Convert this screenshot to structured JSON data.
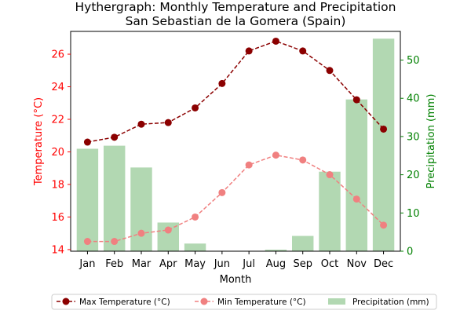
{
  "chart_data": {
    "type": "bar+line",
    "title": "Hythergraph: Monthly Temperature and Precipitation",
    "subtitle": "San Sebastian de la Gomera (Spain)",
    "xlabel": "Month",
    "ylabel_left": "Temperature (°C)",
    "ylabel_right": "Precipitation (mm)",
    "categories": [
      "Jan",
      "Feb",
      "Mar",
      "Apr",
      "May",
      "Jun",
      "Jul",
      "Aug",
      "Sep",
      "Oct",
      "Nov",
      "Dec"
    ],
    "ylim_left": [
      13.9,
      27.4
    ],
    "yticks_left": [
      "14",
      "16",
      "18",
      "20",
      "22",
      "24",
      "26"
    ],
    "ylim_right": [
      0,
      57.5
    ],
    "yticks_right": [
      "0",
      "10",
      "20",
      "30",
      "40",
      "50"
    ],
    "series": [
      {
        "name": "Max Temperature (°C)",
        "kind": "line",
        "axis": "left",
        "color": "#8b0000",
        "values": [
          20.6,
          20.9,
          21.7,
          21.8,
          22.7,
          24.2,
          26.2,
          26.8,
          26.2,
          25.0,
          23.2,
          21.4
        ]
      },
      {
        "name": "Min Temperature (°C)",
        "kind": "line",
        "axis": "left",
        "color": "#f08080",
        "values": [
          14.5,
          14.5,
          15.0,
          15.2,
          16.0,
          17.5,
          19.2,
          19.8,
          19.5,
          18.6,
          17.1,
          15.5
        ]
      },
      {
        "name": "Precipitation (mm)",
        "kind": "bar",
        "axis": "right",
        "color": "#b2d8b2",
        "values": [
          26.8,
          27.6,
          21.9,
          7.5,
          2.0,
          0.0,
          0.0,
          0.4,
          4.0,
          20.8,
          39.7,
          55.6
        ]
      }
    ],
    "left_axis_color": "#ff0000",
    "right_axis_color": "#008000",
    "grid": false,
    "legend_position": "bottom-center"
  }
}
